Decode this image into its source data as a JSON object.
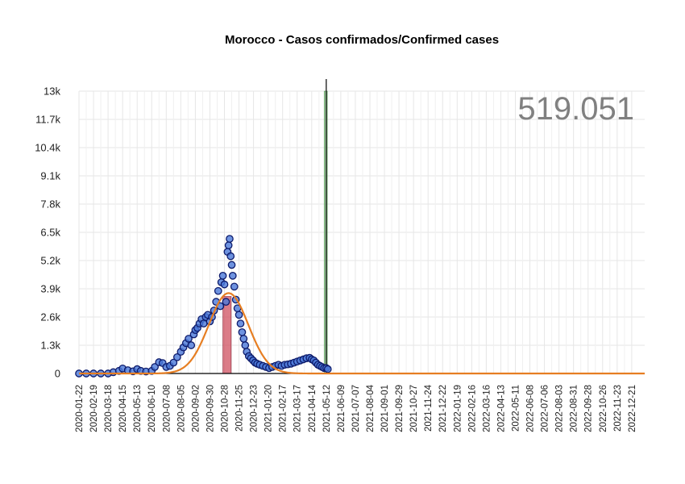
{
  "chart_data": {
    "type": "scatter",
    "title": "Morocco - Casos confirmados/Confirmed cases",
    "total_label": "519.051",
    "xlabel": "",
    "ylabel": "",
    "yticks": [
      0,
      1300,
      2600,
      3900,
      5200,
      6500,
      7800,
      9100,
      10400,
      11700,
      13000
    ],
    "ytick_labels": [
      "0",
      "1.3k",
      "2.6k",
      "3.9k",
      "5.2k",
      "6.5k",
      "7.8k",
      "9.1k",
      "10.4k",
      "11.7k",
      "13k"
    ],
    "ylim": [
      0,
      13000
    ],
    "xlim": [
      "2020-01-22",
      "2023-01-15"
    ],
    "x_start": "2020-01-22",
    "x_tick_step_days": 28,
    "x_tick_count": 39,
    "vertical_line_date": "2021-05-12",
    "highlight_band": {
      "start": "2021-05-08",
      "end": "2021-05-14",
      "color": "#8fc98f"
    },
    "peak_band": {
      "start": "2020-10-25",
      "end": "2020-11-10",
      "color": "#cc4455"
    },
    "grid": true,
    "colors": {
      "points_fill": "#4a78d8",
      "points_stroke": "#0d1b6b",
      "fit_line": "#e67e22",
      "axis": "#000000",
      "grid": "#e6e6e6"
    },
    "series": [
      {
        "type": "scatter",
        "x": [
          "2020-01-22",
          "2020-02-05",
          "2020-02-19",
          "2020-03-04",
          "2020-03-18",
          "2020-03-28",
          "2020-04-08",
          "2020-04-15",
          "2020-04-25",
          "2020-05-05",
          "2020-05-13",
          "2020-05-20",
          "2020-05-30",
          "2020-06-10",
          "2020-06-16",
          "2020-06-24",
          "2020-07-01",
          "2020-07-08",
          "2020-07-15",
          "2020-07-22",
          "2020-07-29",
          "2020-08-05",
          "2020-08-10",
          "2020-08-15",
          "2020-08-20",
          "2020-08-25",
          "2020-08-30",
          "2020-09-02",
          "2020-09-06",
          "2020-09-10",
          "2020-09-14",
          "2020-09-18",
          "2020-09-22",
          "2020-09-26",
          "2020-09-30",
          "2020-10-04",
          "2020-10-08",
          "2020-10-12",
          "2020-10-16",
          "2020-10-20",
          "2020-10-22",
          "2020-10-25",
          "2020-10-28",
          "2020-10-31",
          "2020-11-03",
          "2020-11-05",
          "2020-11-07",
          "2020-11-09",
          "2020-11-11",
          "2020-11-13",
          "2020-11-16",
          "2020-11-19",
          "2020-11-22",
          "2020-11-25",
          "2020-11-28",
          "2020-12-01",
          "2020-12-04",
          "2020-12-07",
          "2020-12-10",
          "2020-12-14",
          "2020-12-18",
          "2020-12-22",
          "2020-12-26",
          "2020-12-30",
          "2021-01-04",
          "2021-01-10",
          "2021-01-16",
          "2021-01-22",
          "2021-01-28",
          "2021-02-03",
          "2021-02-09",
          "2021-02-15",
          "2021-02-21",
          "2021-02-27",
          "2021-03-05",
          "2021-03-11",
          "2021-03-17",
          "2021-03-23",
          "2021-03-29",
          "2021-04-04",
          "2021-04-10",
          "2021-04-14",
          "2021-04-18",
          "2021-04-22",
          "2021-04-26",
          "2021-04-30",
          "2021-05-04",
          "2021-05-08",
          "2021-05-12",
          "2021-05-15"
        ],
        "y": [
          0,
          0,
          0,
          0,
          0,
          60,
          120,
          230,
          150,
          100,
          200,
          120,
          90,
          120,
          300,
          520,
          480,
          300,
          350,
          500,
          750,
          1000,
          1200,
          1400,
          1600,
          1300,
          1800,
          2000,
          2100,
          2300,
          2500,
          2300,
          2600,
          2700,
          2400,
          2600,
          2900,
          3300,
          3800,
          3100,
          4200,
          4500,
          4100,
          3300,
          5600,
          5900,
          6200,
          5400,
          5000,
          4500,
          4000,
          3400,
          3000,
          2700,
          2300,
          1900,
          1600,
          1300,
          1000,
          800,
          700,
          600,
          500,
          450,
          400,
          350,
          300,
          250,
          300,
          350,
          400,
          350,
          400,
          420,
          450,
          500,
          550,
          600,
          650,
          700,
          720,
          650,
          600,
          500,
          400,
          350,
          300,
          250,
          250,
          200
        ]
      },
      {
        "type": "line",
        "name": "fit",
        "peak_date": "2020-11-05",
        "peak_value": 3700,
        "sigma_days": 38
      }
    ]
  }
}
